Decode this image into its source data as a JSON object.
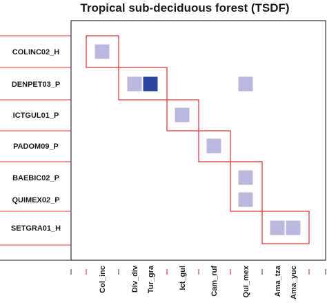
{
  "chart_data": {
    "type": "heatmap",
    "title": "Tropical sub-deciduous forest (TSDF)",
    "rows": [
      "COLINC02_H",
      "DENPET03_P",
      "ICTGUL01_P",
      "PADOM09_P",
      "BAEBIC02_P",
      "QUIMEX02_P",
      "SETGRA01_H"
    ],
    "columns": [
      "Col_inc",
      "Div_div",
      "Tur_gra",
      "Ict_gul",
      "Cam_ruf",
      "Qui_mex",
      "Ama_tza",
      "Ama_yuc"
    ],
    "cells": [
      {
        "row": "COLINC02_H",
        "col": "Col_inc",
        "value": 1
      },
      {
        "row": "DENPET03_P",
        "col": "Div_div",
        "value": 1
      },
      {
        "row": "DENPET03_P",
        "col": "Tur_gra",
        "value": 3
      },
      {
        "row": "DENPET03_P",
        "col": "Qui_mex",
        "value": 1
      },
      {
        "row": "ICTGUL01_P",
        "col": "Ict_gul",
        "value": 1
      },
      {
        "row": "PADOM09_P",
        "col": "Cam_ruf",
        "value": 1
      },
      {
        "row": "BAEBIC02_P",
        "col": "Qui_mex",
        "value": 1
      },
      {
        "row": "QUIMEX02_P",
        "col": "Qui_mex",
        "value": 1
      },
      {
        "row": "SETGRA01_H",
        "col": "Ama_tza",
        "value": 1
      },
      {
        "row": "SETGRA01_H",
        "col": "Ama_yuc",
        "value": 1
      }
    ],
    "modules": [
      {
        "rows": [
          "COLINC02_H"
        ],
        "cols": [
          "Col_inc"
        ]
      },
      {
        "rows": [
          "DENPET03_P"
        ],
        "cols": [
          "Div_div",
          "Tur_gra"
        ]
      },
      {
        "rows": [
          "ICTGUL01_P"
        ],
        "cols": [
          "Ict_gul"
        ]
      },
      {
        "rows": [
          "PADOM09_P"
        ],
        "cols": [
          "Cam_ruf"
        ]
      },
      {
        "rows": [
          "BAEBIC02_P",
          "QUIMEX02_P"
        ],
        "cols": [
          "Qui_mex"
        ]
      },
      {
        "rows": [
          "SETGRA01_H"
        ],
        "cols": [
          "Ama_tza",
          "Ama_yuc"
        ]
      }
    ],
    "colors": {
      "low": "#b9b9e0",
      "high": "#2e479e",
      "module_border": "#e03a3a",
      "frame": "#333333"
    }
  }
}
